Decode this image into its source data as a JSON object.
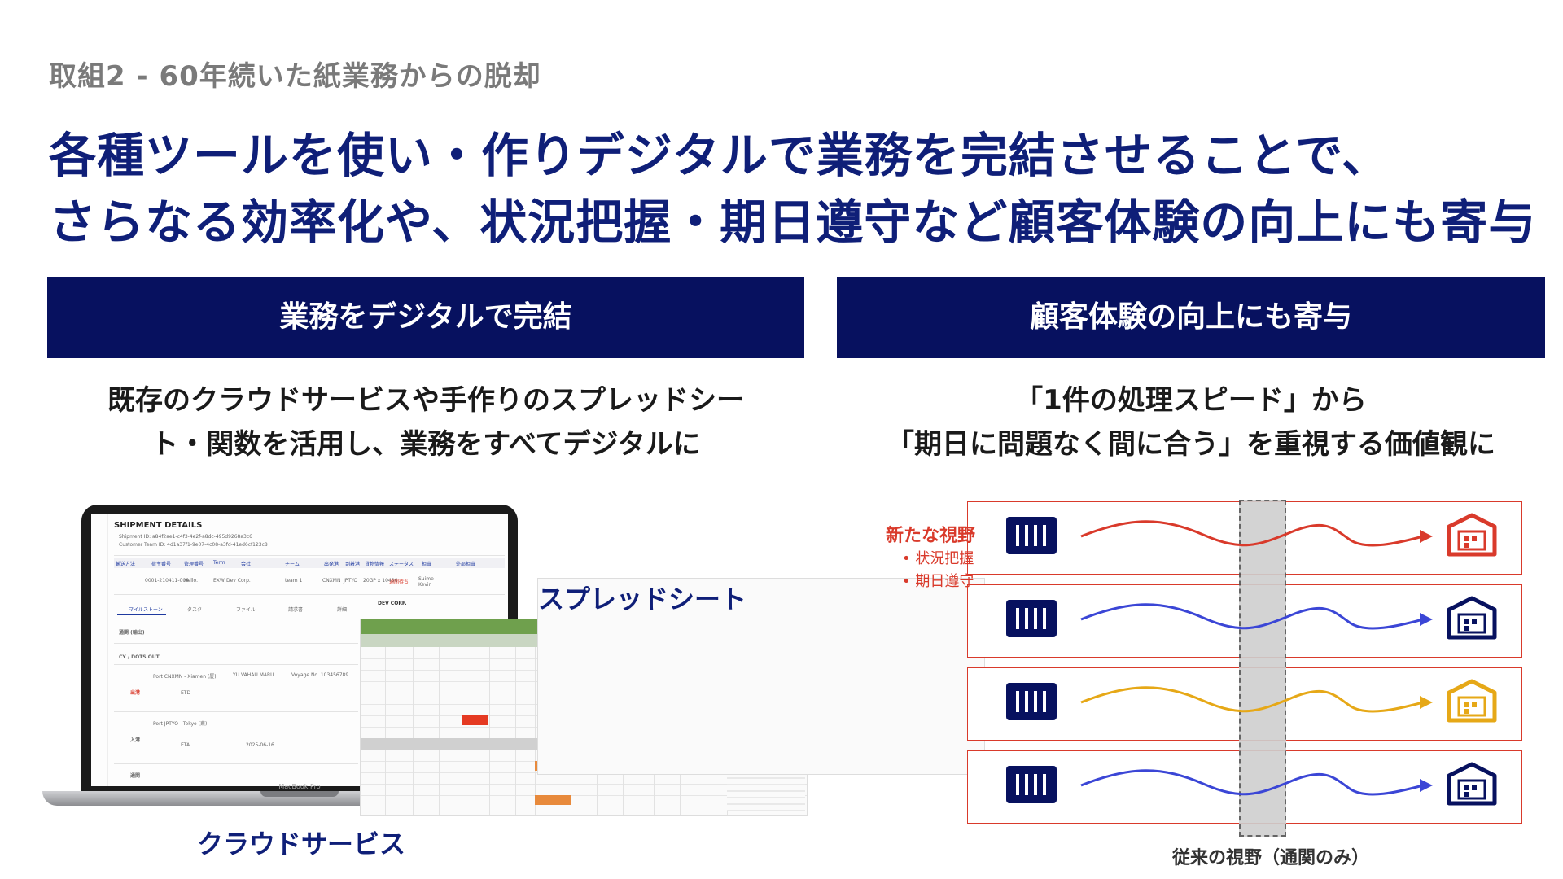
{
  "eyebrow": "取組2 - 60年続いた紙業務からの脱却",
  "headline": {
    "line1": "各種ツールを使い・作りデジタルで業務を完結させることで、",
    "line2": "さらなる効率化や、状況把握・期日遵守など顧客体験の向上にも寄与"
  },
  "left": {
    "header": "業務をデジタルで完結",
    "desc_line1": "既存のクラウドサービスや手作りのスプレッドシー",
    "desc_line2": "ト・関数を活用し、業務をすべてデジタルに",
    "cloud_caption": "クラウドサービス",
    "sheet_caption": "スプレッドシート",
    "laptop": {
      "title": "SHIPMENT DETAILS",
      "shipment_id": "Shipment ID: a84f2ae1-c4f3-4e2f-a8dc-495d9268a3c6",
      "customer_id": "Customer Team ID: 4d1a37f1-9e07-4c08-a3fd-41ed6cf123c8",
      "table_headers": [
        "輸送方法",
        "荷主番号",
        "管理番号",
        "Term",
        "会社",
        "チーム",
        "出発港",
        "到着港",
        "貨物情報",
        "ステータス",
        "担当",
        "外部担当"
      ],
      "row": [
        "0001-210411-004",
        "Hello.",
        "EXW",
        "Dev Corp.",
        "team 1",
        "CNXMN",
        "JPTYO",
        "20GP x 10436",
        "通関待ち",
        "Suime Kevin"
      ],
      "tabs": [
        "マイルストーン",
        "タスク",
        "ファイル",
        "請求書",
        "詳細"
      ],
      "milestones": [
        "通関 (輸出)",
        "CY / DOTS OUT",
        "出港",
        "入港",
        "通関"
      ],
      "port_from": "Port  CNXMN - Xiamen (厦)",
      "vessel": "YU VAHAU MARU",
      "voyage": "Voyage No. 103456789",
      "etd": "ETD",
      "port_to": "Port  JPTYO - Tokyo (東)",
      "eta": "ETA",
      "eta_date": "2025-06-16",
      "side_panel": "DEV CORP.",
      "brand": "MacBook Pro"
    }
  },
  "right": {
    "header": "顧客体験の向上にも寄与",
    "desc_line1": "「1件の処理スピード」から",
    "desc_line2": "「期日に問題なく間に合う」を重視する価値観に",
    "new_view_title": "新たな視野",
    "new_view_items": [
      "状況把握",
      "期日遵守"
    ],
    "old_view_caption": "従来の視野（通関のみ）",
    "lanes": [
      {
        "color": "#d93a2b",
        "warehouse_color": "#d93a2b"
      },
      {
        "color": "#3b46d6",
        "warehouse_color": "#07115f"
      },
      {
        "color": "#e6a817",
        "warehouse_color": "#e6a817"
      },
      {
        "color": "#3b46d6",
        "warehouse_color": "#07115f"
      }
    ],
    "icons": {
      "source": "container-icon",
      "destination": "warehouse-icon"
    }
  },
  "colors": {
    "navy": "#07115f",
    "headline": "#0f1f78",
    "accent_red": "#d93a2b",
    "sheet_green": "#6fa04d"
  }
}
